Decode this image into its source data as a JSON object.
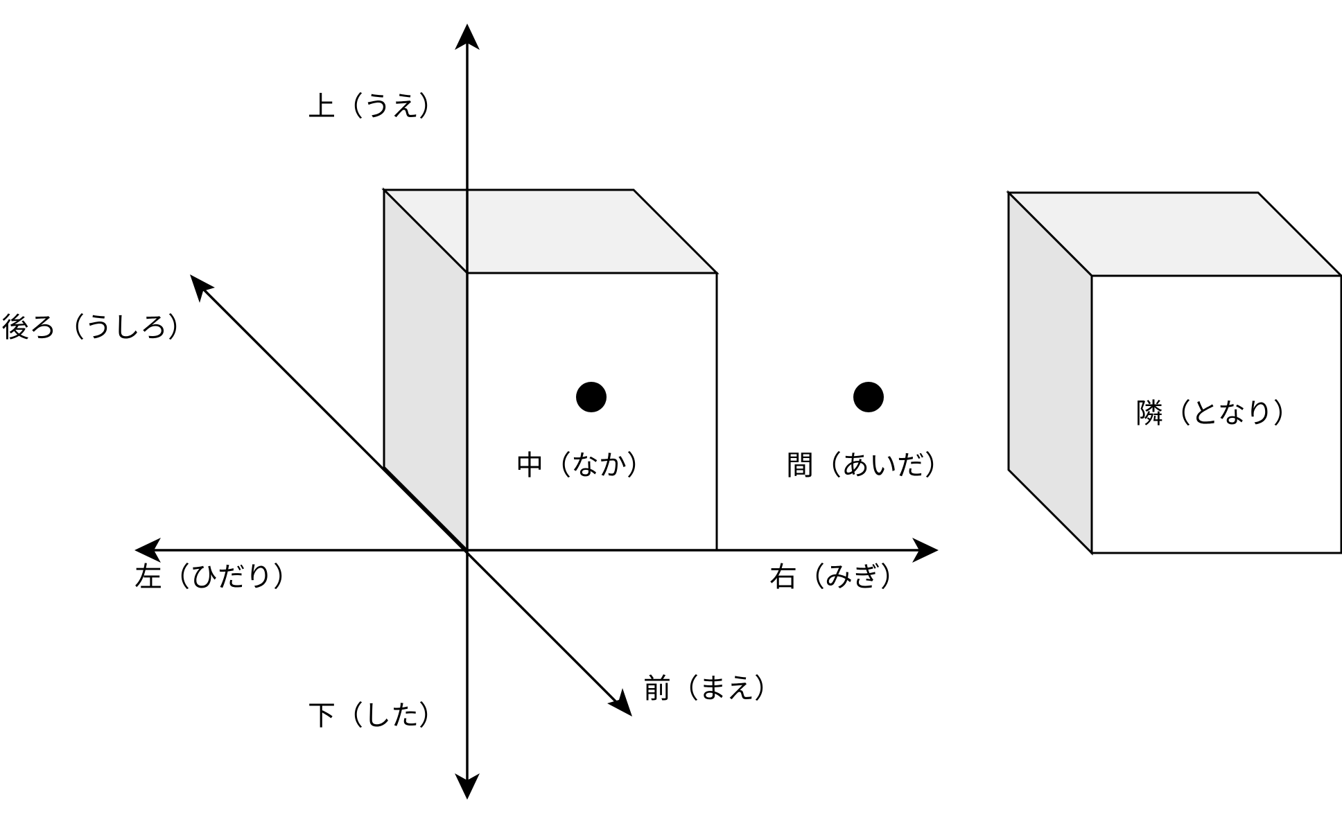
{
  "labels": {
    "up": "上（うえ）",
    "down": "下（した）",
    "back": "後ろ（うしろ）",
    "front": "前（まえ）",
    "left": "左（ひだり）",
    "right": "右（みぎ）",
    "inside": "中（なか）",
    "between": "間（あいだ）",
    "neighbor": "隣（となり）"
  },
  "colors": {
    "line": "#000000",
    "top_face": "#f1f1f1",
    "side_face": "#e4e4e4",
    "front_face": "#ffffff"
  }
}
